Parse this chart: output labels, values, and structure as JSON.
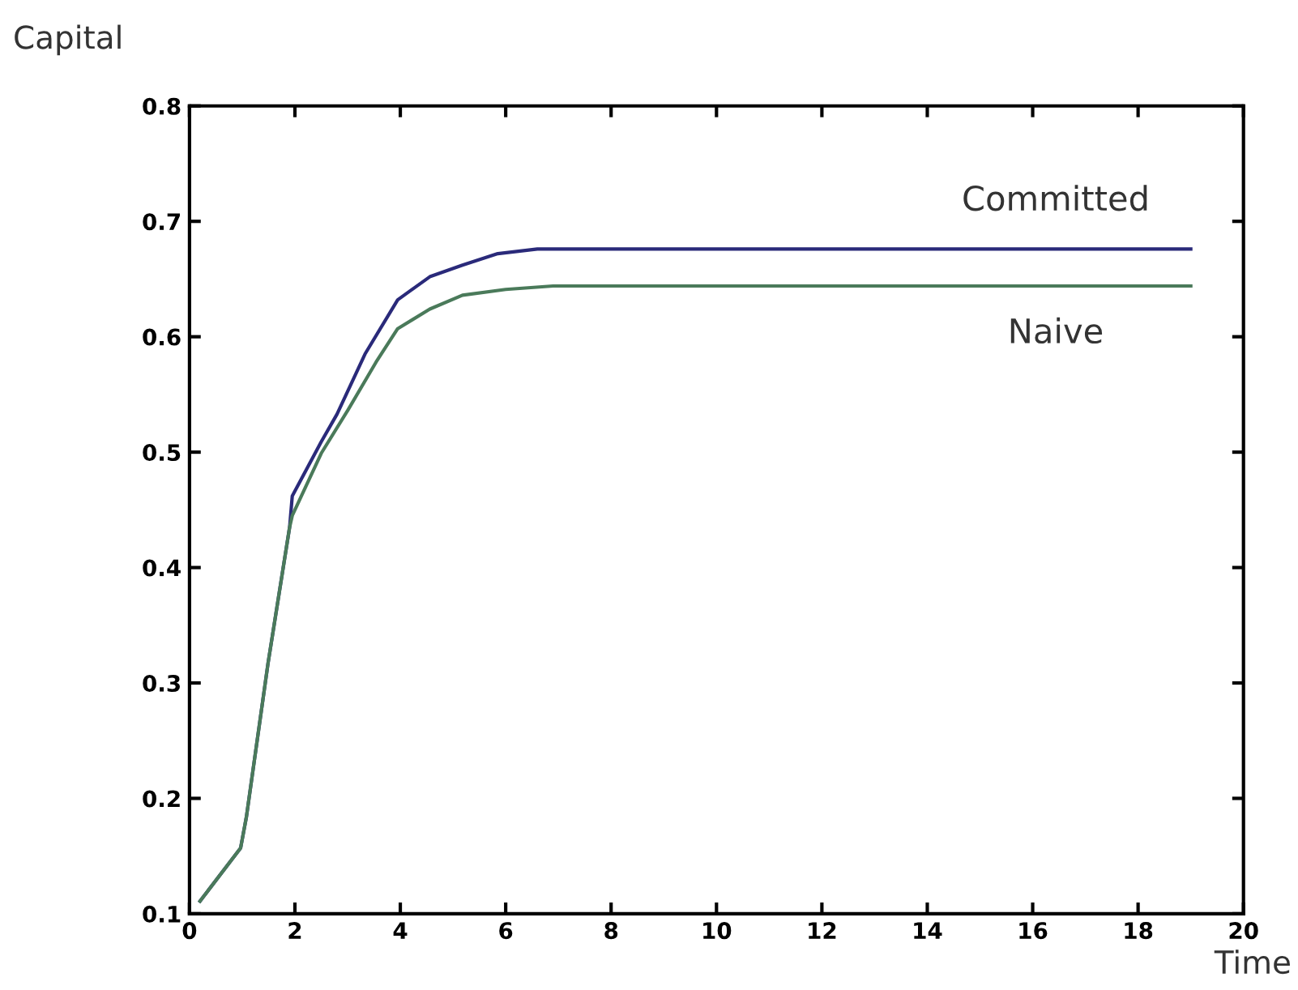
{
  "chart_data": {
    "type": "line",
    "xlabel": "Time",
    "ylabel": "Capital",
    "xlim": [
      0,
      20
    ],
    "ylim": [
      0.1,
      0.8
    ],
    "xticks": [
      0,
      2,
      4,
      6,
      8,
      10,
      12,
      14,
      16,
      18,
      20
    ],
    "yticks": [
      0.1,
      0.2,
      0.3,
      0.4,
      0.5,
      0.6,
      0.7,
      0.8
    ],
    "grid": false,
    "legend": false,
    "line_style": "solid",
    "marker": "none",
    "series": [
      {
        "name": "Committed",
        "color": "#2a2a7a",
        "x": [
          0.2,
          0.97,
          1.08,
          1.49,
          1.9,
          1.95,
          2.5,
          2.8,
          3.33,
          3.95,
          4.56,
          5.18,
          5.85,
          6.6,
          19
        ],
        "values": [
          0.111,
          0.157,
          0.184,
          0.317,
          0.435,
          0.462,
          0.509,
          0.533,
          0.585,
          0.632,
          0.652,
          0.662,
          0.672,
          0.676,
          0.676
        ]
      },
      {
        "name": "Naive",
        "color": "#4a7a5a",
        "x": [
          0.2,
          0.97,
          1.08,
          1.49,
          1.9,
          1.95,
          2.5,
          3.0,
          3.54,
          3.95,
          4.56,
          5.18,
          6.0,
          6.9,
          19
        ],
        "values": [
          0.111,
          0.157,
          0.184,
          0.317,
          0.435,
          0.445,
          0.499,
          0.536,
          0.578,
          0.607,
          0.624,
          0.636,
          0.641,
          0.644,
          0.644
        ]
      }
    ]
  }
}
